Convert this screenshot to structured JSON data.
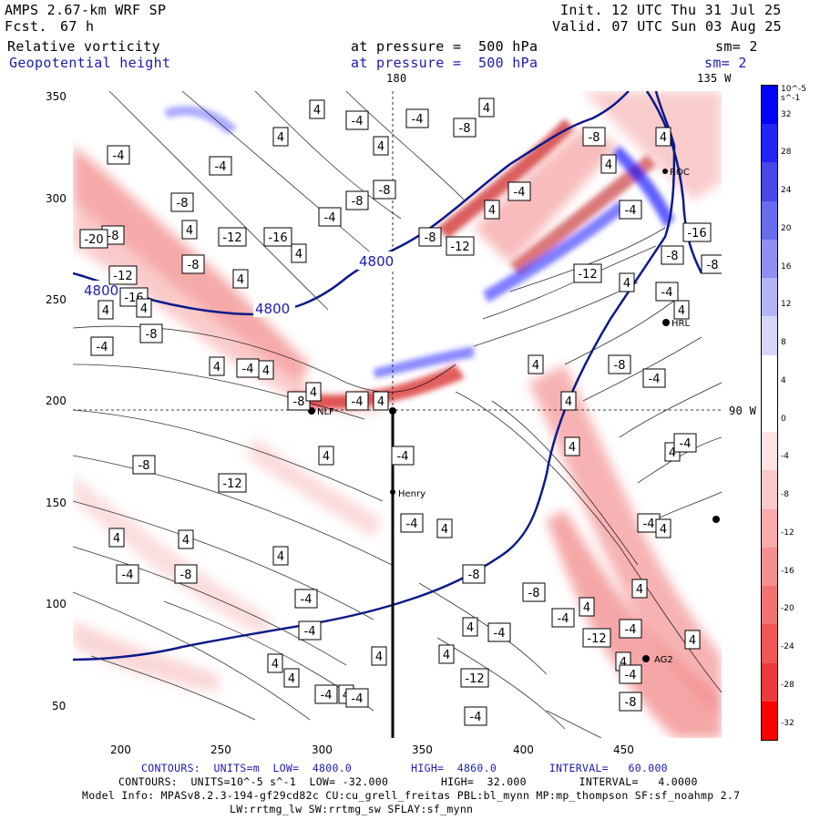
{
  "header": {
    "model": "AMPS 2.67-km WRF SP",
    "fcst_label": "Fcst.",
    "fcst_value": "67 h",
    "init": "Init. 12 UTC Thu 31 Jul 25",
    "valid": "Valid. 07 UTC Sun 03 Aug 25",
    "field1": "Relative vorticity",
    "field2": "Geopotential height",
    "pressure1": "at pressure =  500 hPa",
    "pressure2": "at pressure =  500 hPa",
    "sm1": "sm= 2",
    "sm2": "sm= 2"
  },
  "map_labels": {
    "lon_180": "180",
    "lon_135w": "135 W",
    "lon_90w": "90 W",
    "station_henry": "Henry",
    "station_ag2": "AG2",
    "station_nlf": "NLF",
    "station_hrl": "HRL",
    "station_roc": "ROC",
    "height_contour": "4800"
  },
  "axes": {
    "y_ticks": [
      "350",
      "300",
      "250",
      "200",
      "150",
      "100",
      "50"
    ],
    "x_ticks": [
      "200",
      "250",
      "300",
      "350",
      "400",
      "450"
    ]
  },
  "colorbar": {
    "unit_label": "10^-5 s^-1",
    "labels": [
      "32",
      "28",
      "24",
      "20",
      "16",
      "12",
      "8",
      "4",
      "0",
      "-4",
      "-8",
      "-12",
      "-16",
      "-20",
      "-24",
      "-28",
      "-32"
    ],
    "colors": [
      "#0000ff",
      "#2323f3",
      "#4747e8",
      "#6b6bee",
      "#8f8ff3",
      "#b4b4f8",
      "#d6d6fb",
      "#ffffff",
      "#ffffff",
      "#fde3e3",
      "#fbc7c7",
      "#f8abab",
      "#f58f8f",
      "#f27272",
      "#ef5656",
      "#ec3a3a",
      "#ff0000"
    ]
  },
  "footer": {
    "line1_contours": "CONTOURS:  UNITS=m  LOW=  4800.0         HIGH=  4860.0        INTERVAL=   60.000",
    "line2_contours": "CONTOURS:  UNITS=10^-5 s^-1  LOW= -32.000        HIGH=  32.000        INTERVAL=   4.0000",
    "model_info": "Model Info: MPASv8.2.3-194-gf29cd82c CU:cu_grell_freitas PBL:bl_mynn MP:mp_thompson SF:sf_noahmp 2.7",
    "model_info2": "LW:rrtmg_lw SW:rrtmg_sw SFLAY:sf_mynn"
  },
  "contour_labels": [
    "-4",
    "-8",
    "-12",
    "-16",
    "-20",
    "4",
    "-4",
    "-8",
    "4",
    "-8",
    "-12",
    "-16",
    "4",
    "-4",
    "-8",
    "4",
    "-4",
    "-8",
    "4",
    "-8",
    "-12",
    "4",
    "-4",
    "-8",
    "-12",
    "4",
    "-4",
    "4",
    "-8",
    "-16",
    "4",
    "-4",
    "4",
    "-8",
    "-12",
    "4",
    "-4",
    "4",
    "-8",
    "4",
    "-12",
    "-4",
    "4",
    "-8",
    "4",
    "-4",
    "4",
    "-8",
    "4",
    "-4",
    "4",
    "-4",
    "4",
    "-8",
    "4",
    "-4",
    "4",
    "-8",
    "4",
    "-4",
    "4",
    "-4",
    "4",
    "-4",
    "4",
    "-4",
    "4",
    "-4",
    "4",
    "-8",
    "4",
    "-4",
    "4",
    "-12",
    "-4",
    "-8",
    "4",
    "-4",
    "-12",
    "4",
    "-8",
    "4",
    "-4",
    "4",
    "-4",
    "4",
    "-4",
    "4",
    "-4",
    "4",
    "-8",
    "4",
    "-4",
    "4"
  ]
}
